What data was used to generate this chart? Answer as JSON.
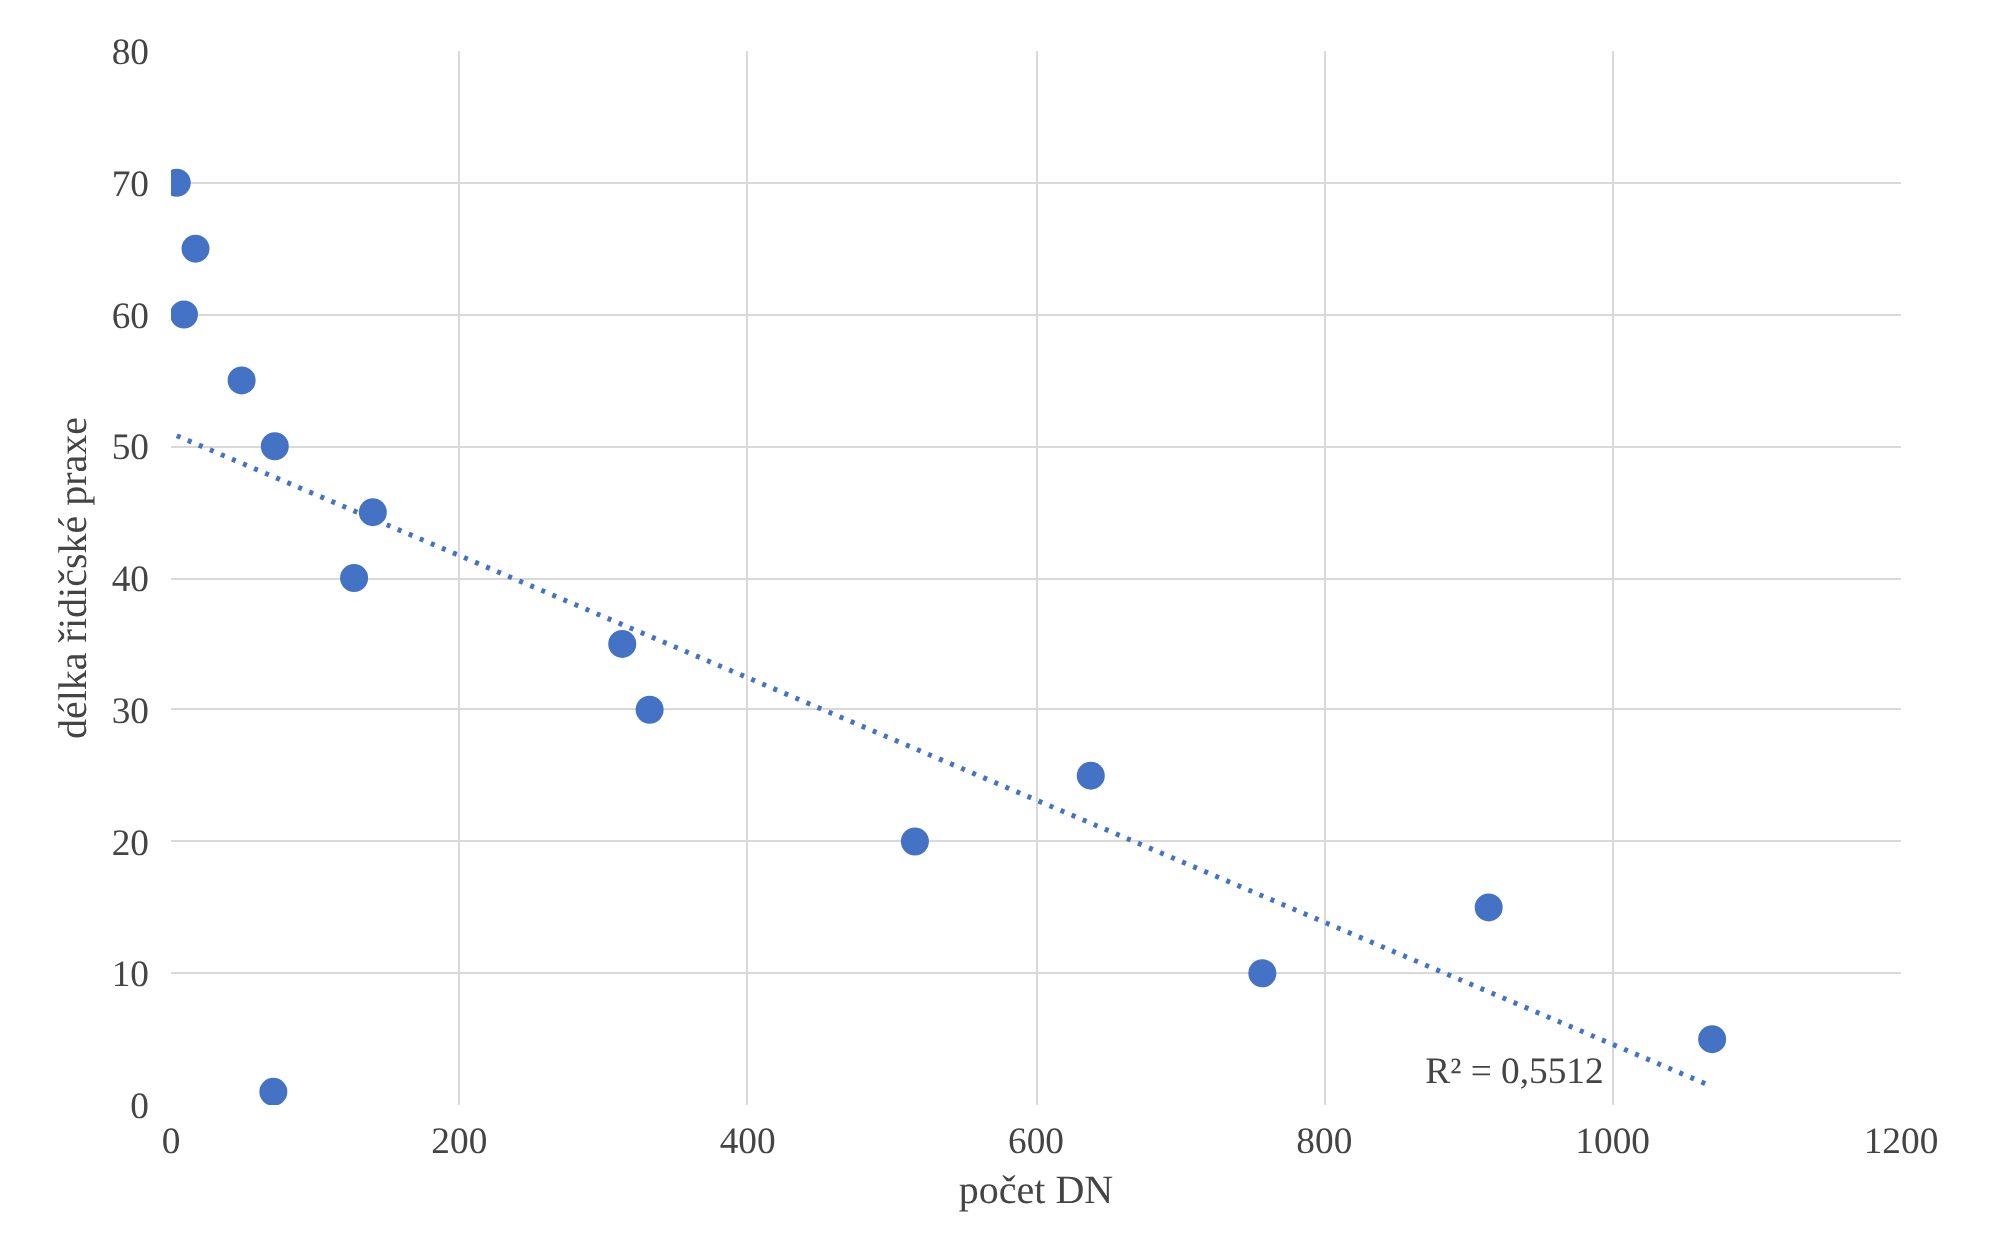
{
  "chart_data": {
    "type": "scatter",
    "xlabel": "počet DN",
    "ylabel": "délka řidičské praxe",
    "x": [
      4,
      17,
      9,
      49,
      72,
      140,
      127,
      313,
      332,
      516,
      638,
      757,
      914,
      1069,
      71
    ],
    "xlim": [
      0,
      1200
    ],
    "xticks": [
      0,
      200,
      400,
      600,
      800,
      1000,
      1200
    ],
    "ylim": [
      0,
      80
    ],
    "yticks": [
      0,
      10,
      20,
      30,
      40,
      50,
      60,
      70,
      80
    ],
    "grid": true,
    "marker": "circle",
    "series": [
      {
        "color": "#4472c4",
        "values": [
          70,
          65,
          60,
          55,
          50,
          45,
          40,
          35,
          30,
          20,
          25,
          10,
          15,
          5,
          1
        ]
      },
      {
        "type": "line",
        "color": "#4472c4",
        "line_style": "dotted",
        "marker": "none",
        "x": [
          4,
          1069
        ],
        "values": [
          50.8,
          1.4
        ]
      }
    ],
    "annotations": [
      "R² = 0,5512"
    ]
  }
}
